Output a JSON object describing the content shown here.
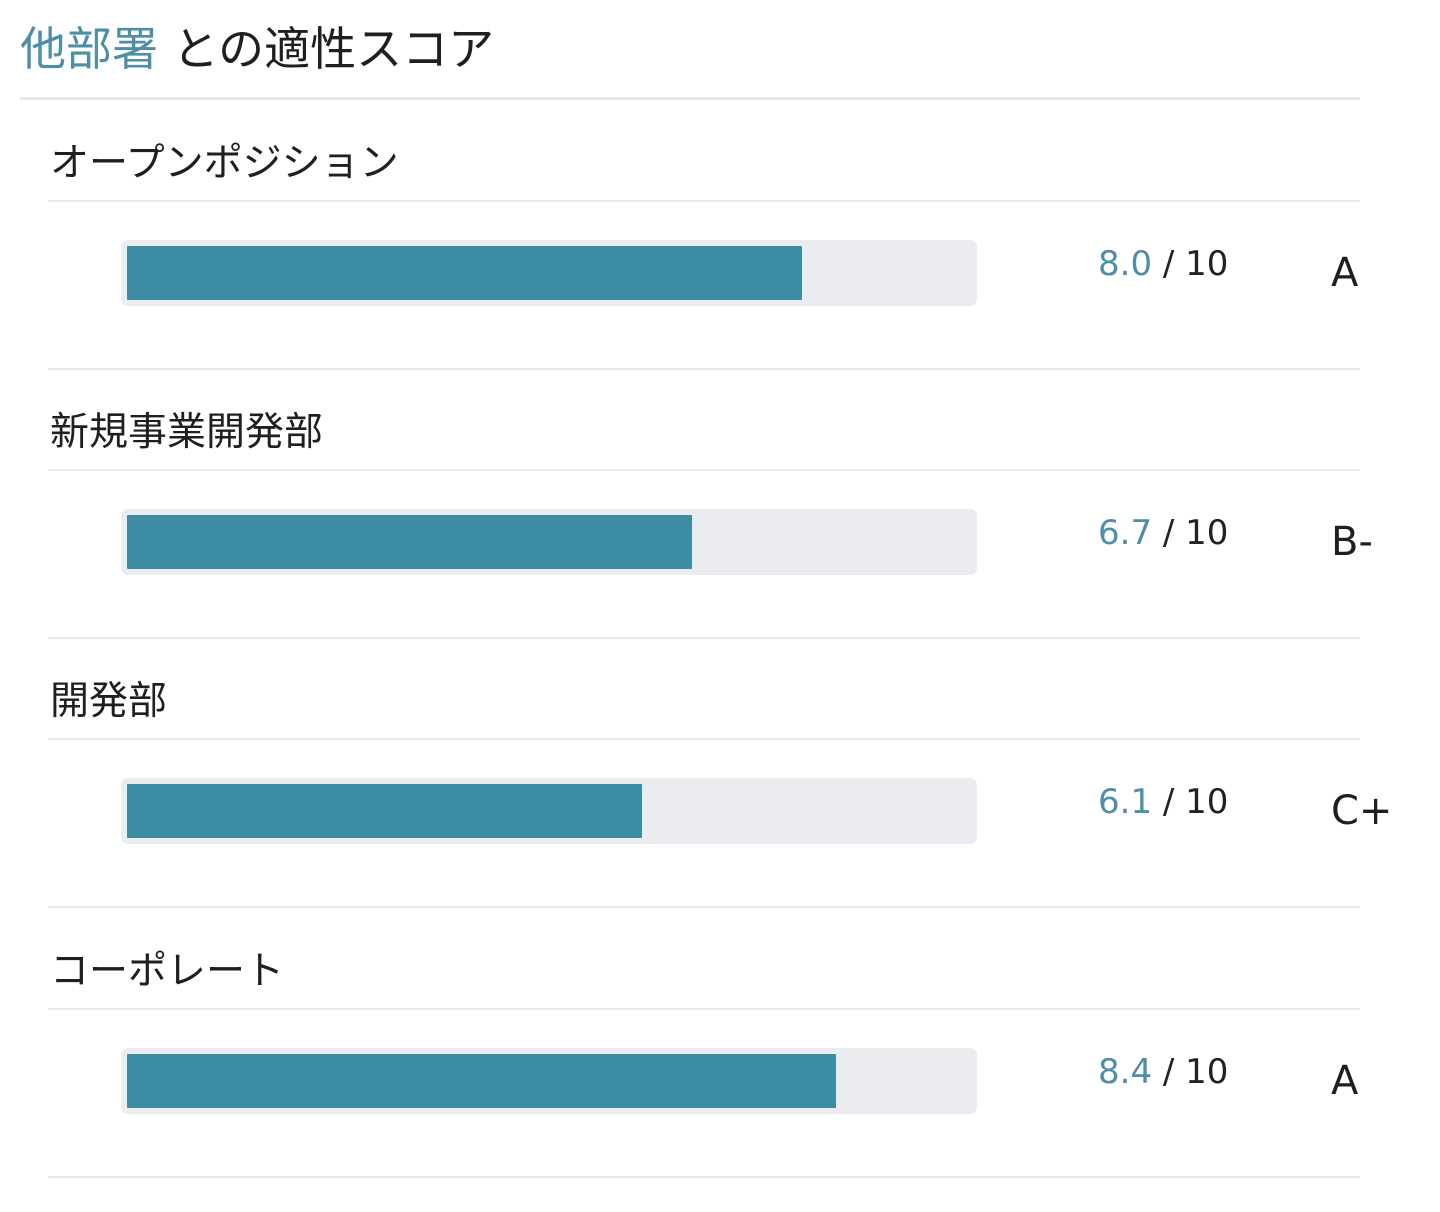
{
  "header": {
    "accent_text": "他部署",
    "rest_text": " との適性スコア"
  },
  "colors": {
    "accent": "#4e8ea6",
    "bar_fill": "#3d8ca6",
    "bar_track": "#ebecf0",
    "divider": "#e6e7ea"
  },
  "sections": [
    {
      "title": "オープンポジション",
      "score": "8.0",
      "max_label": " / 10",
      "max": 10,
      "value": 8.0,
      "grade": "A"
    },
    {
      "title": "新規事業開発部",
      "score": "6.7",
      "max_label": " / 10",
      "max": 10,
      "value": 6.7,
      "grade": "B-"
    },
    {
      "title": "開発部",
      "score": "6.1",
      "max_label": " / 10",
      "max": 10,
      "value": 6.1,
      "grade": "C+"
    },
    {
      "title": "コーポレート",
      "score": "8.4",
      "max_label": " / 10",
      "max": 10,
      "value": 8.4,
      "grade": "A"
    }
  ]
}
